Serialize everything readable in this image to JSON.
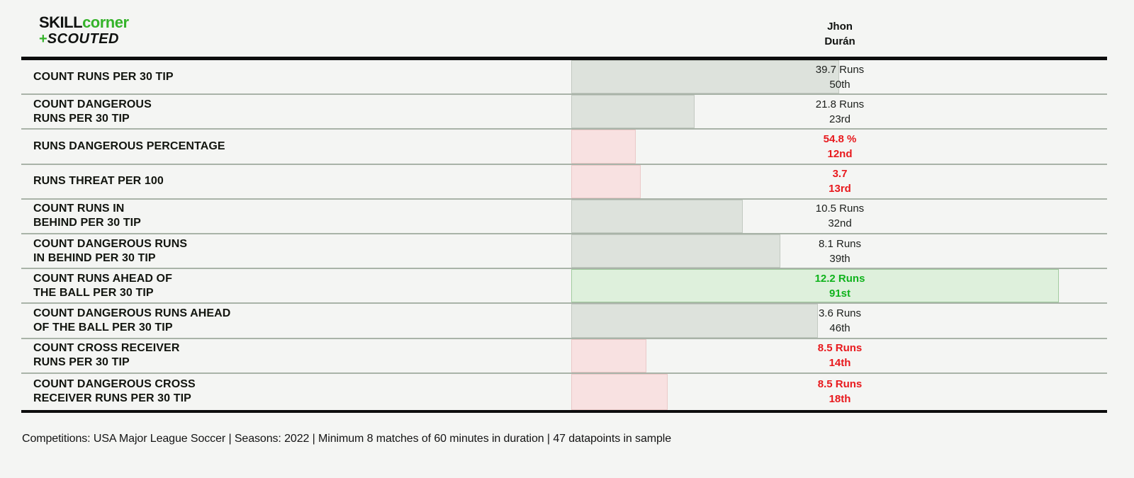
{
  "header": {
    "logo": {
      "skill": "SKILL",
      "corner": "corner",
      "plus": "+",
      "scouted": "SCOUTED"
    },
    "player_name_line1": "Jhon",
    "player_name_line2": "Durán"
  },
  "chart_data": {
    "type": "bar",
    "orientation": "horizontal",
    "value_axis": "percentile rank",
    "xlim": [
      0,
      100
    ],
    "legend_position": "none",
    "grid": "row separators only",
    "categories": [
      "COUNT RUNS PER 30 TIP",
      "COUNT DANGEROUS RUNS PER 30 TIP",
      "RUNS DANGEROUS PERCENTAGE",
      "RUNS THREAT PER 100",
      "COUNT RUNS IN BEHIND PER 30 TIP",
      "COUNT DANGEROUS RUNS IN BEHIND PER 30 TIP",
      "COUNT RUNS AHEAD OF THE BALL PER 30 TIP",
      "COUNT DANGEROUS RUNS AHEAD OF THE BALL PER 30 TIP",
      "COUNT CROSS RECEIVER RUNS PER 30 TIP",
      "COUNT DANGEROUS CROSS RECEIVER RUNS PER 30 TIP"
    ],
    "values": [
      50,
      23,
      12,
      13,
      32,
      39,
      91,
      46,
      14,
      18
    ],
    "rows": [
      {
        "label_lines": [
          "COUNT RUNS PER 30 TIP"
        ],
        "value": "39.7 Runs",
        "percentile_label": "50th",
        "percentile": 50,
        "status": "neutral"
      },
      {
        "label_lines": [
          "COUNT DANGEROUS",
          "RUNS PER 30 TIP"
        ],
        "value": "21.8 Runs",
        "percentile_label": "23rd",
        "percentile": 23,
        "status": "neutral"
      },
      {
        "label_lines": [
          "RUNS DANGEROUS PERCENTAGE"
        ],
        "value": "54.8 %",
        "percentile_label": "12nd",
        "percentile": 12,
        "status": "bad"
      },
      {
        "label_lines": [
          "RUNS THREAT PER 100"
        ],
        "value": "3.7",
        "percentile_label": "13rd",
        "percentile": 13,
        "status": "bad"
      },
      {
        "label_lines": [
          "COUNT RUNS IN",
          "BEHIND PER 30 TIP"
        ],
        "value": "10.5 Runs",
        "percentile_label": "32nd",
        "percentile": 32,
        "status": "neutral"
      },
      {
        "label_lines": [
          "COUNT DANGEROUS RUNS",
          "IN BEHIND PER 30 TIP"
        ],
        "value": "8.1 Runs",
        "percentile_label": "39th",
        "percentile": 39,
        "status": "neutral"
      },
      {
        "label_lines": [
          "COUNT RUNS AHEAD OF",
          "THE BALL PER 30 TIP"
        ],
        "value": "12.2 Runs",
        "percentile_label": "91st",
        "percentile": 91,
        "status": "good"
      },
      {
        "label_lines": [
          "COUNT DANGEROUS RUNS AHEAD",
          "OF THE BALL PER 30 TIP"
        ],
        "value": "3.6 Runs",
        "percentile_label": "46th",
        "percentile": 46,
        "status": "neutral"
      },
      {
        "label_lines": [
          "COUNT CROSS RECEIVER",
          "RUNS PER 30 TIP"
        ],
        "value": "8.5 Runs",
        "percentile_label": "14th",
        "percentile": 14,
        "status": "bad"
      },
      {
        "label_lines": [
          "COUNT DANGEROUS CROSS",
          "RECEIVER RUNS PER 30 TIP"
        ],
        "value": "8.5 Runs",
        "percentile_label": "18th",
        "percentile": 18,
        "status": "bad"
      }
    ]
  },
  "footer": {
    "text": "Competitions: USA Major League Soccer | Seasons: 2022 | Minimum 8 matches of 60 minutes in duration | 47 datapoints in sample"
  },
  "colors": {
    "background": "#f4f5f3",
    "logo_green": "#35b32a",
    "separator": "#a9b3a8",
    "bar_neutral": "#dde2dc",
    "bar_neutral_border": "#c2c9c1",
    "bar_bad": "#f8e1e1",
    "bar_bad_border": "#ebc9c8",
    "bar_good": "#def0dc",
    "bar_good_border": "#a2cba0",
    "text_bad": "#e8191d",
    "text_good": "#0fb31c"
  }
}
